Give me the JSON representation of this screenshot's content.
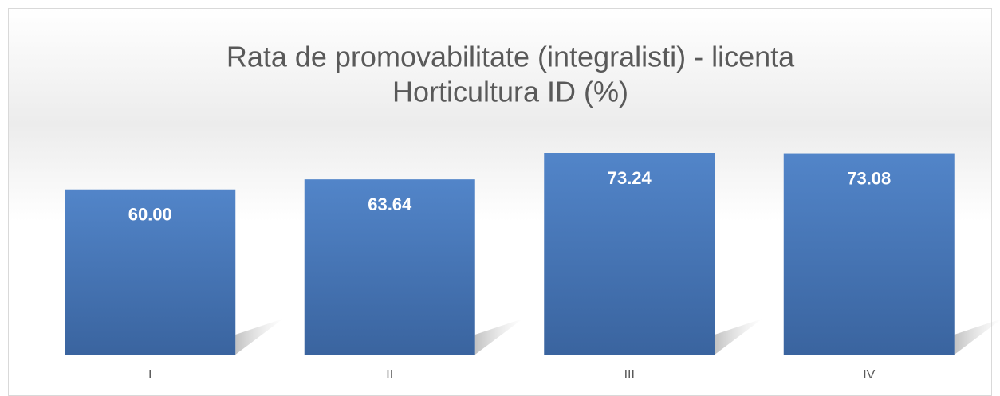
{
  "chart_data": {
    "type": "bar",
    "title": [
      "Rata de promovabilitate (integralisti) - licenta",
      "Horticultura ID (%)"
    ],
    "categories": [
      "I",
      "II",
      "III",
      "IV"
    ],
    "values": [
      60.0,
      63.64,
      73.24,
      73.08
    ],
    "value_labels": [
      "60.00",
      "63.64",
      "73.24",
      "73.08"
    ],
    "color": "#4a7ab9"
  }
}
